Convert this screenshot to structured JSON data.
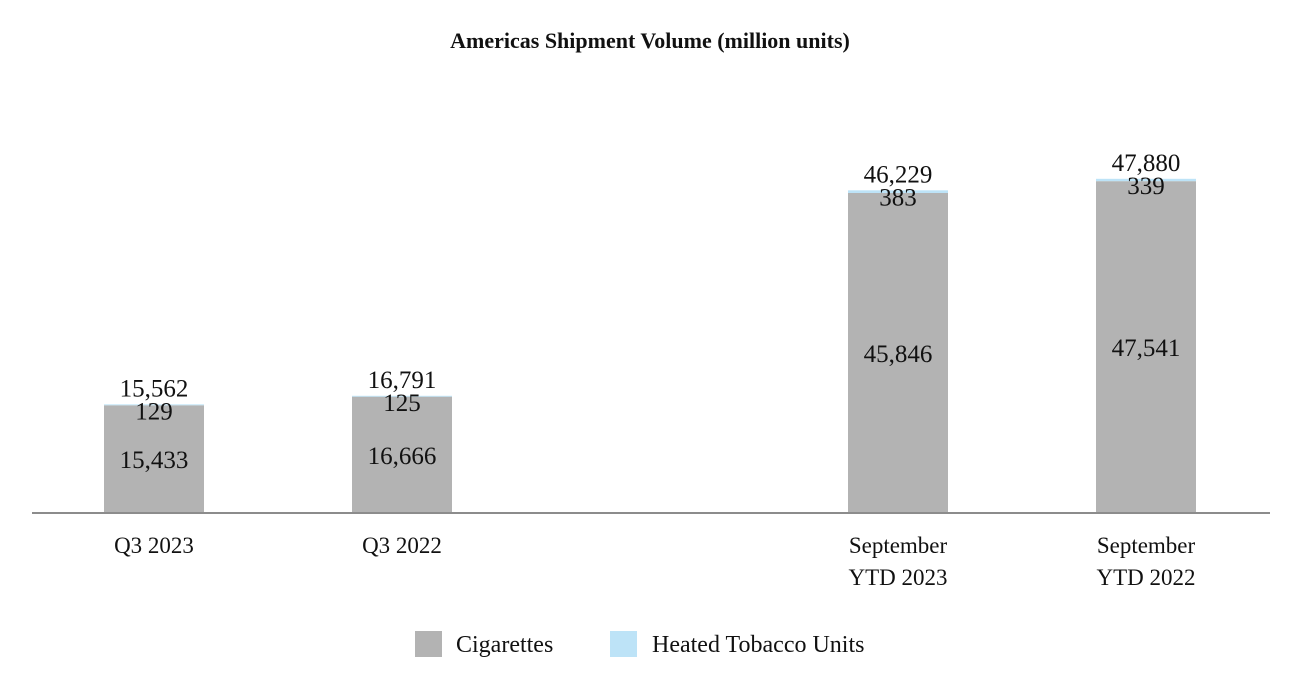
{
  "chart_data": {
    "type": "bar",
    "stacked": true,
    "title": "Americas Shipment Volume (million units)",
    "xlabel": "",
    "ylabel": "",
    "ylim": [
      0,
      50000
    ],
    "grid": false,
    "legend_position": "bottom",
    "categories": [
      [
        "Q3 2023"
      ],
      [
        "Q3 2022"
      ],
      [
        "September",
        "YTD 2023"
      ],
      [
        "September",
        "YTD 2022"
      ]
    ],
    "series": [
      {
        "name": "Cigarettes",
        "color": "#b3b3b3",
        "values": [
          15433,
          16666,
          45846,
          47541
        ],
        "labels": [
          "15,433",
          "16,666",
          "45,846",
          "47,541"
        ]
      },
      {
        "name": "Heated Tobacco Units",
        "color": "#bde3f7",
        "values": [
          129,
          125,
          383,
          339
        ],
        "labels": [
          "129",
          "125",
          "383",
          "339"
        ]
      }
    ],
    "totals": [
      "15,562",
      "16,791",
      "46,229",
      "47,880"
    ]
  }
}
